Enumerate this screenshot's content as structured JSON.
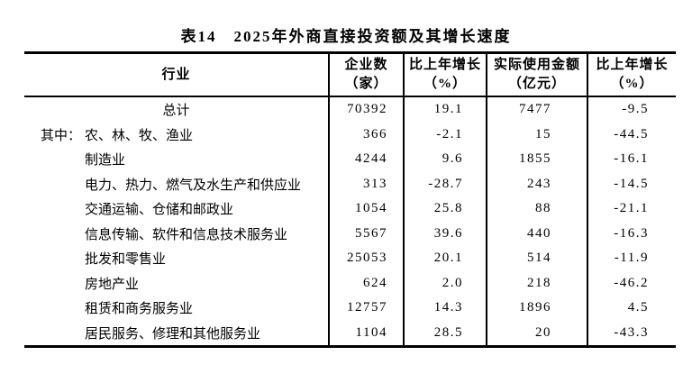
{
  "page": {
    "title": "表14　2025年外商直接投资额及其增长速度"
  },
  "table": {
    "columns": [
      {
        "label": "行业",
        "unit": ""
      },
      {
        "label": "企业数",
        "unit": "（家）"
      },
      {
        "label": "比上年增长",
        "unit": "（%）"
      },
      {
        "label": "实际使用金额",
        "unit": "（亿元）"
      },
      {
        "label": "比上年增长",
        "unit": "（%）"
      }
    ],
    "rows": [
      {
        "prefix": "",
        "industry": "总计",
        "enterprises": "70392",
        "enterprises_growth": "19.1",
        "amount": "7477",
        "amount_growth": "-9.5"
      },
      {
        "prefix": "其中：",
        "industry": "农、林、牧、渔业",
        "enterprises": "366",
        "enterprises_growth": "-2.1",
        "amount": "15",
        "amount_growth": "-44.5"
      },
      {
        "prefix": "",
        "industry": "制造业",
        "enterprises": "4244",
        "enterprises_growth": "9.6",
        "amount": "1855",
        "amount_growth": "-16.1"
      },
      {
        "prefix": "",
        "industry": "电力、热力、燃气及水生产和供应业",
        "enterprises": "313",
        "enterprises_growth": "-28.7",
        "amount": "243",
        "amount_growth": "-14.5"
      },
      {
        "prefix": "",
        "industry": "交通运输、仓储和邮政业",
        "enterprises": "1054",
        "enterprises_growth": "25.8",
        "amount": "88",
        "amount_growth": "-21.1"
      },
      {
        "prefix": "",
        "industry": "信息传输、软件和信息技术服务业",
        "enterprises": "5567",
        "enterprises_growth": "39.6",
        "amount": "440",
        "amount_growth": "-16.3"
      },
      {
        "prefix": "",
        "industry": "批发和零售业",
        "enterprises": "25053",
        "enterprises_growth": "20.1",
        "amount": "514",
        "amount_growth": "-11.9"
      },
      {
        "prefix": "",
        "industry": "房地产业",
        "enterprises": "624",
        "enterprises_growth": "2.0",
        "amount": "218",
        "amount_growth": "-46.2"
      },
      {
        "prefix": "",
        "industry": "租赁和商务服务业",
        "enterprises": "12757",
        "enterprises_growth": "14.3",
        "amount": "1896",
        "amount_growth": "4.5"
      },
      {
        "prefix": "",
        "industry": "居民服务、修理和其他服务业",
        "enterprises": "1104",
        "enterprises_growth": "28.5",
        "amount": "20",
        "amount_growth": "-43.3"
      }
    ]
  },
  "colors": {
    "text": "#000000",
    "background": "#ffffff",
    "border": "#000000"
  }
}
